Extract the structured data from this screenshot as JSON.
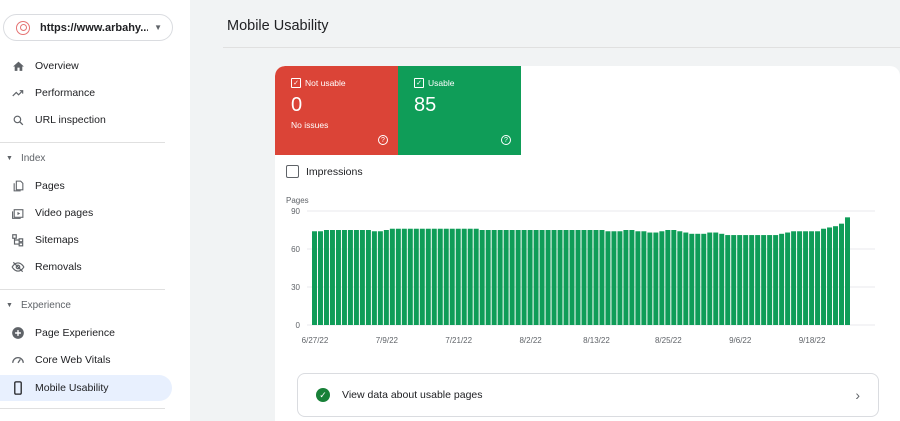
{
  "property": {
    "label": "https://www.arbahy...."
  },
  "sidebar": {
    "items": [
      {
        "label": "Overview",
        "icon": "home-icon"
      },
      {
        "label": "Performance",
        "icon": "trending-up-icon"
      },
      {
        "label": "URL inspection",
        "icon": "search-icon"
      }
    ],
    "index_section": "Index",
    "index_items": [
      {
        "label": "Pages",
        "icon": "pages-icon"
      },
      {
        "label": "Video pages",
        "icon": "video-icon"
      },
      {
        "label": "Sitemaps",
        "icon": "sitemap-icon"
      },
      {
        "label": "Removals",
        "icon": "eye-off-icon"
      }
    ],
    "experience_section": "Experience",
    "experience_items": [
      {
        "label": "Page Experience",
        "icon": "plus-circle-icon"
      },
      {
        "label": "Core Web Vitals",
        "icon": "gauge-icon"
      },
      {
        "label": "Mobile Usability",
        "icon": "smartphone-icon",
        "active": true
      }
    ]
  },
  "header": {
    "title": "Mobile Usability"
  },
  "summary": {
    "not_usable": {
      "label": "Not usable",
      "value": "0",
      "note": "No issues",
      "color": "#db4437"
    },
    "usable": {
      "label": "Usable",
      "value": "85",
      "color": "#0f9d58"
    }
  },
  "impressions_label": "Impressions",
  "view_data_label": "View data about usable pages",
  "chart_data": {
    "type": "bar",
    "ylabel": "Pages",
    "ylim": [
      0,
      90
    ],
    "yticks": [
      "0",
      "30",
      "60",
      "90"
    ],
    "xtick_labels": [
      "6/27/22",
      "7/9/22",
      "7/21/22",
      "8/2/22",
      "8/13/22",
      "8/25/22",
      "9/6/22",
      "9/18/22"
    ],
    "xtick_index": [
      0,
      12,
      24,
      36,
      47,
      59,
      71,
      83
    ],
    "color": "#0f9d58",
    "values": [
      74,
      74,
      75,
      75,
      75,
      75,
      75,
      75,
      75,
      75,
      74,
      74,
      75,
      76,
      76,
      76,
      76,
      76,
      76,
      76,
      76,
      76,
      76,
      76,
      76,
      76,
      76,
      76,
      75,
      75,
      75,
      75,
      75,
      75,
      75,
      75,
      75,
      75,
      75,
      75,
      75,
      75,
      75,
      75,
      75,
      75,
      75,
      75,
      75,
      74,
      74,
      74,
      75,
      75,
      74,
      74,
      73,
      73,
      74,
      75,
      75,
      74,
      73,
      72,
      72,
      72,
      73,
      73,
      72,
      71,
      71,
      71,
      71,
      71,
      71,
      71,
      71,
      71,
      72,
      73,
      74,
      74,
      74,
      74,
      74,
      76,
      77,
      78,
      80,
      85
    ]
  }
}
